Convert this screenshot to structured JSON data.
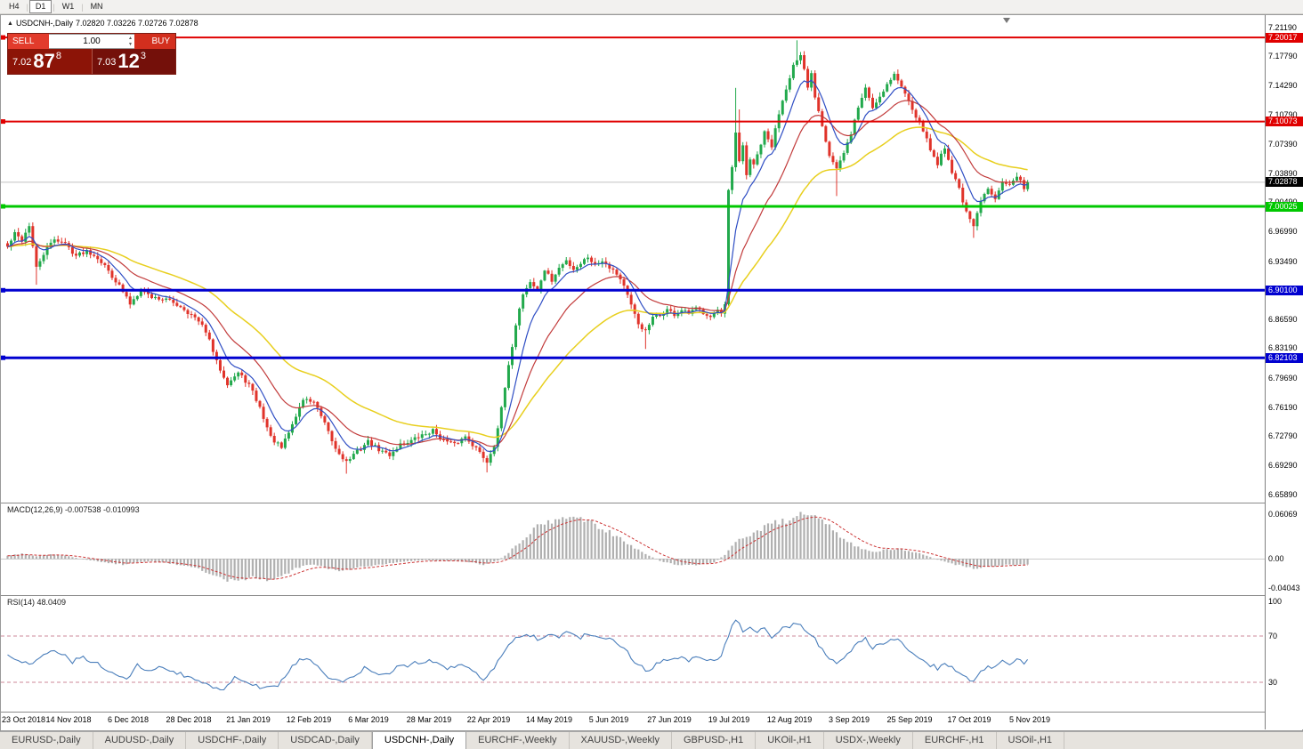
{
  "toolbar": {
    "timeframes": [
      {
        "label": "H4",
        "active": false
      },
      {
        "label": "D1",
        "active": true
      },
      {
        "label": "W1",
        "active": false
      },
      {
        "label": "MN",
        "active": false
      }
    ]
  },
  "window": {
    "title_symbol": "USDCNH-,Daily",
    "title_ohlc": "7.02820 7.03226 7.02726 7.02878"
  },
  "trade_panel": {
    "sell_label": "SELL",
    "buy_label": "BUY",
    "volume": "1.00",
    "sell_price": {
      "head": "7.02",
      "big": "87",
      "sup": "8"
    },
    "buy_price": {
      "head": "7.03",
      "big": "12",
      "sup": "3"
    }
  },
  "price_axis": {
    "labels": [
      "7.21190",
      "7.17790",
      "7.14290",
      "7.10790",
      "7.07390",
      "7.03890",
      "7.00490",
      "6.96990",
      "6.93490",
      "6.90090",
      "6.86590",
      "6.83190",
      "6.79690",
      "6.76190",
      "6.72790",
      "6.69290",
      "6.65890"
    ]
  },
  "current_price": {
    "value": 7.02878,
    "label": "7.02878",
    "bg": "#000000",
    "fg": "#ffffff"
  },
  "hlines": [
    {
      "value": 7.20017,
      "label": "7.20017",
      "color": "#e00000",
      "width": 2
    },
    {
      "value": 7.10073,
      "label": "7.10073",
      "color": "#e00000",
      "width": 2
    },
    {
      "value": 7.00025,
      "label": "7.00025",
      "color": "#00c800",
      "width": 3
    },
    {
      "value": 6.901,
      "label": "6.90100",
      "color": "#0000d0",
      "width": 3
    },
    {
      "value": 6.82103,
      "label": "6.82103",
      "color": "#0000d0",
      "width": 3
    }
  ],
  "indicators": {
    "macd": {
      "title": "MACD(12,26,9) -0.007538 -0.010993",
      "axis_labels": [
        {
          "value": 0.06069,
          "text": "0.06069"
        },
        {
          "value": 0,
          "text": "0.00"
        },
        {
          "value": -0.04043,
          "text": "-0.04043"
        }
      ],
      "anchors": [
        [
          0,
          0.004
        ],
        [
          4,
          0.007
        ],
        [
          8,
          0.003
        ],
        [
          12,
          0.006
        ],
        [
          16,
          0.004
        ],
        [
          20,
          0.0
        ],
        [
          24,
          -0.003
        ],
        [
          28,
          -0.006
        ],
        [
          32,
          -0.008
        ],
        [
          36,
          -0.005
        ],
        [
          40,
          -0.004
        ],
        [
          44,
          -0.006
        ],
        [
          48,
          -0.009
        ],
        [
          52,
          -0.012
        ],
        [
          56,
          -0.02
        ],
        [
          60,
          -0.028
        ],
        [
          64,
          -0.031
        ],
        [
          68,
          -0.026
        ],
        [
          72,
          -0.028
        ],
        [
          76,
          -0.024
        ],
        [
          80,
          -0.014
        ],
        [
          84,
          -0.008
        ],
        [
          88,
          -0.012
        ],
        [
          92,
          -0.016
        ],
        [
          96,
          -0.014
        ],
        [
          100,
          -0.01
        ],
        [
          104,
          -0.008
        ],
        [
          108,
          -0.005
        ],
        [
          112,
          -0.003
        ],
        [
          116,
          -0.002
        ],
        [
          120,
          -0.003
        ],
        [
          124,
          -0.003
        ],
        [
          128,
          -0.005
        ],
        [
          132,
          -0.008
        ],
        [
          136,
          -0.003
        ],
        [
          139,
          0.008
        ],
        [
          142,
          0.022
        ],
        [
          145,
          0.036
        ],
        [
          148,
          0.046
        ],
        [
          151,
          0.052
        ],
        [
          154,
          0.056
        ],
        [
          157,
          0.058
        ],
        [
          160,
          0.054
        ],
        [
          163,
          0.047
        ],
        [
          166,
          0.039
        ],
        [
          169,
          0.031
        ],
        [
          172,
          0.022
        ],
        [
          175,
          0.012
        ],
        [
          178,
          0.004
        ],
        [
          181,
          -0.003
        ],
        [
          184,
          -0.007
        ],
        [
          187,
          -0.009
        ],
        [
          190,
          -0.009
        ],
        [
          193,
          -0.008
        ],
        [
          196,
          -0.005
        ],
        [
          199,
          0.005
        ],
        [
          202,
          0.022
        ],
        [
          205,
          0.032
        ],
        [
          208,
          0.038
        ],
        [
          211,
          0.044
        ],
        [
          214,
          0.05
        ],
        [
          217,
          0.055
        ],
        [
          220,
          0.058
        ],
        [
          223,
          0.056
        ],
        [
          226,
          0.05
        ],
        [
          229,
          0.04
        ],
        [
          232,
          0.028
        ],
        [
          235,
          0.018
        ],
        [
          238,
          0.012
        ],
        [
          241,
          0.01
        ],
        [
          244,
          0.012
        ],
        [
          247,
          0.013
        ],
        [
          250,
          0.011
        ],
        [
          253,
          0.007
        ],
        [
          256,
          0.002
        ],
        [
          259,
          -0.003
        ],
        [
          262,
          -0.007
        ],
        [
          265,
          -0.01
        ],
        [
          268,
          -0.013
        ],
        [
          271,
          -0.012
        ],
        [
          274,
          -0.01
        ],
        [
          277,
          -0.009
        ],
        [
          280,
          -0.009
        ],
        [
          283,
          -0.0075
        ]
      ]
    },
    "rsi": {
      "title": "RSI(14) 48.0409",
      "axis_labels": [
        {
          "value": 100,
          "text": "100"
        },
        {
          "value": 70,
          "text": "70"
        },
        {
          "value": 30,
          "text": "30"
        }
      ],
      "levels": [
        70,
        30
      ],
      "anchors": [
        [
          0,
          55
        ],
        [
          3,
          50
        ],
        [
          6,
          44
        ],
        [
          9,
          52
        ],
        [
          12,
          58
        ],
        [
          15,
          54
        ],
        [
          18,
          48
        ],
        [
          21,
          52
        ],
        [
          24,
          47
        ],
        [
          27,
          42
        ],
        [
          30,
          37
        ],
        [
          33,
          33
        ],
        [
          36,
          45
        ],
        [
          39,
          41
        ],
        [
          42,
          42
        ],
        [
          45,
          40
        ],
        [
          48,
          37
        ],
        [
          51,
          33
        ],
        [
          54,
          30
        ],
        [
          57,
          26
        ],
        [
          60,
          24
        ],
        [
          63,
          35
        ],
        [
          66,
          31
        ],
        [
          69,
          27
        ],
        [
          72,
          25
        ],
        [
          75,
          28
        ],
        [
          78,
          40
        ],
        [
          81,
          50
        ],
        [
          84,
          49
        ],
        [
          87,
          40
        ],
        [
          90,
          32
        ],
        [
          93,
          29
        ],
        [
          96,
          36
        ],
        [
          99,
          42
        ],
        [
          102,
          38
        ],
        [
          105,
          36
        ],
        [
          108,
          42
        ],
        [
          111,
          45
        ],
        [
          114,
          47
        ],
        [
          117,
          50
        ],
        [
          120,
          44
        ],
        [
          123,
          42
        ],
        [
          126,
          46
        ],
        [
          129,
          39
        ],
        [
          132,
          33
        ],
        [
          135,
          43
        ],
        [
          138,
          57
        ],
        [
          141,
          68
        ],
        [
          144,
          73
        ],
        [
          147,
          68
        ],
        [
          150,
          72
        ],
        [
          153,
          70
        ],
        [
          156,
          73
        ],
        [
          159,
          69
        ],
        [
          162,
          72
        ],
        [
          165,
          70
        ],
        [
          168,
          66
        ],
        [
          171,
          60
        ],
        [
          174,
          48
        ],
        [
          177,
          40
        ],
        [
          180,
          45
        ],
        [
          183,
          49
        ],
        [
          186,
          52
        ],
        [
          189,
          49
        ],
        [
          192,
          51
        ],
        [
          195,
          49
        ],
        [
          198,
          52
        ],
        [
          200,
          70
        ],
        [
          202,
          85
        ],
        [
          204,
          74
        ],
        [
          206,
          78
        ],
        [
          208,
          73
        ],
        [
          210,
          76
        ],
        [
          212,
          70
        ],
        [
          214,
          75
        ],
        [
          216,
          78
        ],
        [
          218,
          80
        ],
        [
          220,
          79
        ],
        [
          222,
          72
        ],
        [
          224,
          67
        ],
        [
          226,
          58
        ],
        [
          228,
          50
        ],
        [
          230,
          45
        ],
        [
          232,
          52
        ],
        [
          234,
          58
        ],
        [
          236,
          63
        ],
        [
          238,
          67
        ],
        [
          240,
          60
        ],
        [
          242,
          63
        ],
        [
          244,
          66
        ],
        [
          246,
          68
        ],
        [
          248,
          63
        ],
        [
          250,
          58
        ],
        [
          252,
          53
        ],
        [
          254,
          50
        ],
        [
          256,
          45
        ],
        [
          258,
          42
        ],
        [
          260,
          48
        ],
        [
          262,
          42
        ],
        [
          264,
          38
        ],
        [
          266,
          33
        ],
        [
          268,
          30
        ],
        [
          270,
          40
        ],
        [
          272,
          45
        ],
        [
          274,
          42
        ],
        [
          276,
          48
        ],
        [
          278,
          46
        ],
        [
          280,
          50
        ],
        [
          282,
          47
        ],
        [
          283,
          48
        ]
      ]
    }
  },
  "time_axis": [
    "23 Oct 2018",
    "14 Nov 2018",
    "6 Dec 2018",
    "28 Dec 2018",
    "21 Jan 2019",
    "12 Feb 2019",
    "6 Mar 2019",
    "28 Mar 2019",
    "22 Apr 2019",
    "14 May 2019",
    "5 Jun 2019",
    "27 Jun 2019",
    "19 Jul 2019",
    "12 Aug 2019",
    "3 Sep 2019",
    "25 Sep 2019",
    "17 Oct 2019",
    "5 Nov 2019"
  ],
  "chart_data": {
    "type": "candlestick",
    "symbol": "USDCNH-",
    "timeframe": "Daily",
    "open": "7.02820",
    "high": "7.03226",
    "low": "7.02726",
    "close": "7.02878",
    "bars": 284,
    "price_range": [
      6.6496,
      7.2151
    ],
    "up_color": "#22a94c",
    "down_color": "#e0332a",
    "ma_periods": {
      "blue": 8,
      "red": 20,
      "yellow": 45
    },
    "close_anchors": [
      [
        0,
        6.952
      ],
      [
        2,
        6.968
      ],
      [
        4,
        6.96
      ],
      [
        6,
        6.978
      ],
      [
        8,
        6.927
      ],
      [
        10,
        6.944
      ],
      [
        13,
        6.962
      ],
      [
        16,
        6.956
      ],
      [
        19,
        6.942
      ],
      [
        22,
        6.948
      ],
      [
        25,
        6.94
      ],
      [
        28,
        6.924
      ],
      [
        31,
        6.906
      ],
      [
        34,
        6.885
      ],
      [
        37,
        6.902
      ],
      [
        40,
        6.893
      ],
      [
        44,
        6.89
      ],
      [
        48,
        6.882
      ],
      [
        52,
        6.868
      ],
      [
        55,
        6.853
      ],
      [
        58,
        6.816
      ],
      [
        61,
        6.791
      ],
      [
        64,
        6.803
      ],
      [
        67,
        6.789
      ],
      [
        70,
        6.762
      ],
      [
        73,
        6.727
      ],
      [
        76,
        6.714
      ],
      [
        79,
        6.742
      ],
      [
        82,
        6.772
      ],
      [
        85,
        6.769
      ],
      [
        88,
        6.742
      ],
      [
        91,
        6.713
      ],
      [
        94,
        6.698
      ],
      [
        97,
        6.71
      ],
      [
        100,
        6.722
      ],
      [
        103,
        6.712
      ],
      [
        106,
        6.706
      ],
      [
        109,
        6.719
      ],
      [
        112,
        6.723
      ],
      [
        115,
        6.729
      ],
      [
        118,
        6.735
      ],
      [
        121,
        6.723
      ],
      [
        124,
        6.718
      ],
      [
        127,
        6.728
      ],
      [
        130,
        6.714
      ],
      [
        133,
        6.698
      ],
      [
        135,
        6.718
      ],
      [
        137,
        6.76
      ],
      [
        139,
        6.81
      ],
      [
        141,
        6.861
      ],
      [
        143,
        6.897
      ],
      [
        145,
        6.911
      ],
      [
        147,
        6.901
      ],
      [
        149,
        6.925
      ],
      [
        151,
        6.912
      ],
      [
        153,
        6.927
      ],
      [
        155,
        6.936
      ],
      [
        157,
        6.926
      ],
      [
        159,
        6.933
      ],
      [
        161,
        6.941
      ],
      [
        163,
        6.931
      ],
      [
        165,
        6.937
      ],
      [
        167,
        6.929
      ],
      [
        169,
        6.921
      ],
      [
        171,
        6.907
      ],
      [
        173,
        6.882
      ],
      [
        175,
        6.861
      ],
      [
        177,
        6.852
      ],
      [
        179,
        6.868
      ],
      [
        181,
        6.871
      ],
      [
        183,
        6.878
      ],
      [
        185,
        6.872
      ],
      [
        187,
        6.877
      ],
      [
        189,
        6.873
      ],
      [
        191,
        6.879
      ],
      [
        193,
        6.875
      ],
      [
        195,
        6.871
      ],
      [
        197,
        6.877
      ],
      [
        198,
        6.872
      ],
      [
        199,
        6.882
      ],
      [
        200,
        7.018
      ],
      [
        201,
        7.046
      ],
      [
        202,
        7.086
      ],
      [
        203,
        7.052
      ],
      [
        204,
        7.072
      ],
      [
        205,
        7.038
      ],
      [
        206,
        7.056
      ],
      [
        207,
        7.048
      ],
      [
        208,
        7.061
      ],
      [
        210,
        7.087
      ],
      [
        212,
        7.071
      ],
      [
        214,
        7.111
      ],
      [
        216,
        7.141
      ],
      [
        218,
        7.167
      ],
      [
        220,
        7.177
      ],
      [
        221,
        7.161
      ],
      [
        222,
        7.141
      ],
      [
        223,
        7.157
      ],
      [
        224,
        7.131
      ],
      [
        226,
        7.097
      ],
      [
        228,
        7.061
      ],
      [
        230,
        7.045
      ],
      [
        232,
        7.062
      ],
      [
        234,
        7.087
      ],
      [
        236,
        7.117
      ],
      [
        238,
        7.141
      ],
      [
        240,
        7.117
      ],
      [
        242,
        7.131
      ],
      [
        244,
        7.145
      ],
      [
        246,
        7.157
      ],
      [
        248,
        7.141
      ],
      [
        250,
        7.127
      ],
      [
        252,
        7.107
      ],
      [
        254,
        7.091
      ],
      [
        256,
        7.067
      ],
      [
        258,
        7.051
      ],
      [
        260,
        7.071
      ],
      [
        262,
        7.041
      ],
      [
        264,
        7.022
      ],
      [
        266,
        6.992
      ],
      [
        268,
        6.976
      ],
      [
        270,
        7.006
      ],
      [
        272,
        7.021
      ],
      [
        274,
        7.011
      ],
      [
        276,
        7.031
      ],
      [
        278,
        7.025
      ],
      [
        280,
        7.035
      ],
      [
        282,
        7.023
      ],
      [
        283,
        7.0288
      ]
    ],
    "wick_overrides": {
      "8": {
        "l": 6.9075
      },
      "94": {
        "l": 6.6838
      },
      "133": {
        "l": 6.6853
      },
      "177": {
        "l": 6.8315
      },
      "202": {
        "h": 7.1405
      },
      "203": {
        "h": 7.115
      },
      "219": {
        "h": 7.1968
      },
      "230": {
        "l": 7.0125
      },
      "268": {
        "l": 6.963
      }
    }
  },
  "tabs": [
    {
      "label": "EURUSD-,Daily",
      "active": false
    },
    {
      "label": "AUDUSD-,Daily",
      "active": false
    },
    {
      "label": "USDCHF-,Daily",
      "active": false
    },
    {
      "label": "USDCAD-,Daily",
      "active": false
    },
    {
      "label": "USDCNH-,Daily",
      "active": true
    },
    {
      "label": "EURCHF-,Weekly",
      "active": false
    },
    {
      "label": "XAUUSD-,Weekly",
      "active": false
    },
    {
      "label": "GBPUSD-,H1",
      "active": false
    },
    {
      "label": "UKOil-,H1",
      "active": false
    },
    {
      "label": "USDX-,Weekly",
      "active": false
    },
    {
      "label": "EURCHF-,H1",
      "active": false
    },
    {
      "label": "USOil-,H1",
      "active": false
    }
  ]
}
